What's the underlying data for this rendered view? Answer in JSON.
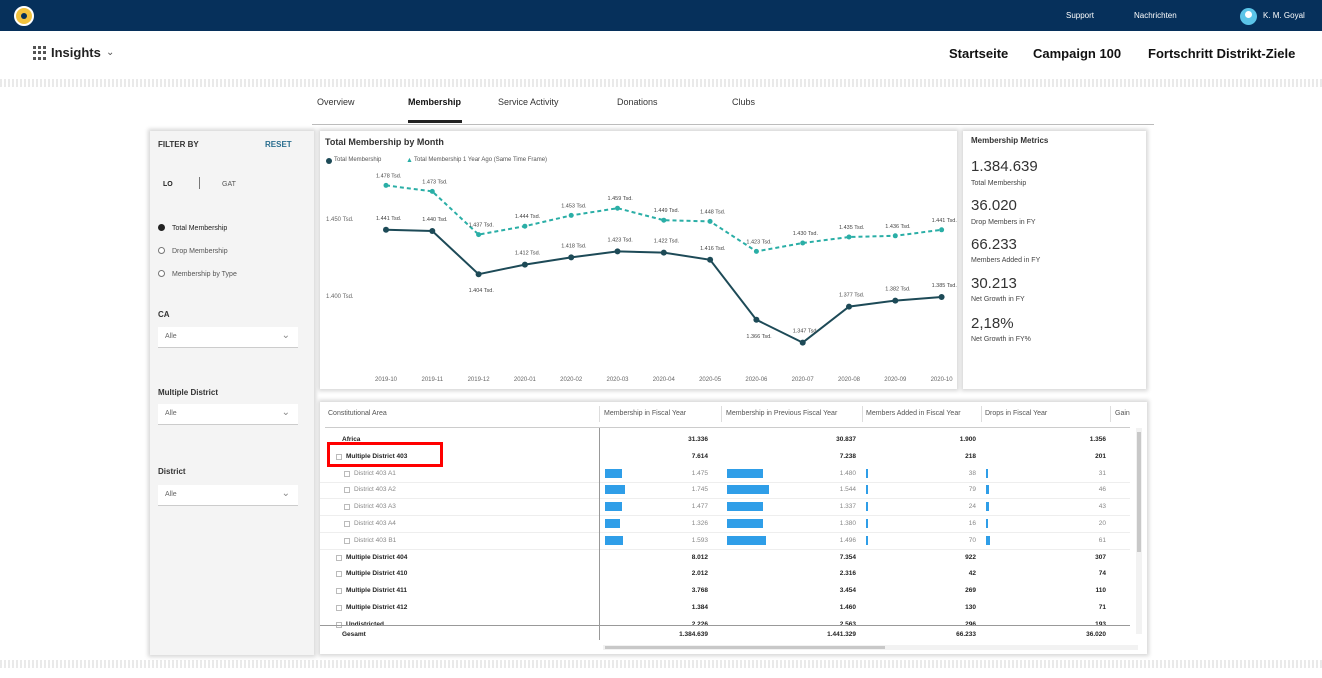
{
  "topbar": {
    "support": "Support",
    "messages": "Nachrichten",
    "user": "K. M. Goyal"
  },
  "header": {
    "app": "Insights",
    "chevron": "⌄",
    "nav": [
      "Startseite",
      "Campaign 100",
      "Fortschritt Distrikt-Ziele"
    ]
  },
  "tabs": [
    "Overview",
    "Membership",
    "Service Activity",
    "Donations",
    "Clubs"
  ],
  "filter": {
    "title": "FILTER BY",
    "reset": "RESET",
    "toggle": [
      "LO",
      "GAT"
    ],
    "options": [
      "Total Membership",
      "Drop Membership",
      "Membership by Type"
    ],
    "ca_label": "CA",
    "ca_value": "Alle",
    "md_label": "Multiple District",
    "md_value": "Alle",
    "d_label": "District",
    "d_value": "Alle"
  },
  "chart": {
    "title": "Total Membership by Month",
    "legend": [
      "Total Membership",
      "Total Membership 1 Year Ago (Same Time Frame)"
    ]
  },
  "chart_data": {
    "type": "line",
    "title": "Total Membership by Month",
    "categories": [
      "2019-10",
      "2019-11",
      "2019-12",
      "2020-01",
      "2020-02",
      "2020-03",
      "2020-04",
      "2020-05",
      "2020-06",
      "2020-07",
      "2020-08",
      "2020-09",
      "2020-10"
    ],
    "series": [
      {
        "name": "Total Membership",
        "values": [
          1441,
          1440,
          1404,
          1412,
          1418,
          1423,
          1422,
          1416,
          1366,
          1347,
          1377,
          1382,
          1385
        ],
        "labels": [
          "1.441 Tsd.",
          "1.440 Tsd.",
          "1.404 Tsd.",
          "1.412 Tsd.",
          "1.418 Tsd.",
          "1.423 Tsd.",
          "1.422 Tsd.",
          "1.416 Tsd.",
          "1.366 Tsd.",
          "1.347 Tsd.",
          "1.377 Tsd.",
          "1.382 Tsd.",
          "1.385 Tsd."
        ],
        "color": "#1d4a57"
      },
      {
        "name": "Total Membership 1 Year Ago (Same Time Frame)",
        "values": [
          1478,
          1473,
          1437,
          1444,
          1453,
          1459,
          1449,
          1448,
          1423,
          1430,
          1435,
          1436,
          1441
        ],
        "labels": [
          "1.478 Tsd.",
          "1.473 Tsd.",
          "1.437 Tsd.",
          "1.444 Tsd.",
          "1.453 Tsd.",
          "1.459 Tsd.",
          "1.449 Tsd.",
          "1.448 Tsd.",
          "1.423 Tsd.",
          "1.430 Tsd.",
          "1.435 Tsd.",
          "1.436 Tsd.",
          "1.441 Tsd."
        ],
        "color": "#2aaea6"
      }
    ],
    "yticks": [
      "1.450 Tsd.",
      "1.400 Tsd."
    ],
    "ylim": [
      1340,
      1490
    ]
  },
  "metrics": {
    "title": "Membership Metrics",
    "items": [
      {
        "value": "1.384.639",
        "label": "Total Membership"
      },
      {
        "value": "36.020",
        "label": "Drop Members in FY"
      },
      {
        "value": "66.233",
        "label": "Members Added in FY"
      },
      {
        "value": "30.213",
        "label": "Net Growth in FY"
      },
      {
        "value": "2,18%",
        "label": "Net Growth in FY%"
      }
    ]
  },
  "table": {
    "headers": [
      "Constitutional Area",
      "Membership in Fiscal Year",
      "Membership in Previous Fiscal Year",
      "Members Added in Fiscal Year",
      "Drops in Fiscal Year",
      "Gain"
    ],
    "rows": [
      {
        "name": "Africa",
        "c1": "31.336",
        "c2": "30.837",
        "c3": "1.900",
        "c4": "1.356",
        "level": 0,
        "bold": true,
        "b1": 0,
        "b2": 0,
        "b3": 0,
        "b4": 0
      },
      {
        "name": "Multiple District 403",
        "c1": "7.614",
        "c2": "7.238",
        "c3": "218",
        "c4": "201",
        "level": 1,
        "bold": true,
        "b1": 0,
        "b2": 0,
        "b3": 0,
        "b4": 0
      },
      {
        "name": "District 403 A1",
        "c1": "1.475",
        "c2": "1.480",
        "c3": "38",
        "c4": "31",
        "level": 2,
        "bold": false,
        "b1": 0.55,
        "b2": 0.6,
        "b3": 0.25,
        "b4": 0.3
      },
      {
        "name": "District 403 A2",
        "c1": "1.745",
        "c2": "1.544",
        "c3": "79",
        "c4": "46",
        "level": 2,
        "bold": false,
        "b1": 0.65,
        "b2": 0.7,
        "b3": 0.4,
        "b4": 0.4
      },
      {
        "name": "District 403 A3",
        "c1": "1.477",
        "c2": "1.337",
        "c3": "24",
        "c4": "43",
        "level": 2,
        "bold": false,
        "b1": 0.55,
        "b2": 0.6,
        "b3": 0.2,
        "b4": 0.35
      },
      {
        "name": "District 403 A4",
        "c1": "1.326",
        "c2": "1.380",
        "c3": "16",
        "c4": "20",
        "level": 2,
        "bold": false,
        "b1": 0.5,
        "b2": 0.6,
        "b3": 0.15,
        "b4": 0.25
      },
      {
        "name": "District 403 B1",
        "c1": "1.593",
        "c2": "1.496",
        "c3": "70",
        "c4": "61",
        "level": 2,
        "bold": false,
        "b1": 0.6,
        "b2": 0.65,
        "b3": 0.35,
        "b4": 0.5
      },
      {
        "name": "Multiple District 404",
        "c1": "8.012",
        "c2": "7.354",
        "c3": "922",
        "c4": "307",
        "level": 1,
        "bold": true,
        "b1": 0,
        "b2": 0,
        "b3": 0,
        "b4": 0
      },
      {
        "name": "Multiple District 410",
        "c1": "2.012",
        "c2": "2.316",
        "c3": "42",
        "c4": "74",
        "level": 1,
        "bold": true,
        "b1": 0,
        "b2": 0,
        "b3": 0,
        "b4": 0
      },
      {
        "name": "Multiple District 411",
        "c1": "3.768",
        "c2": "3.454",
        "c3": "269",
        "c4": "110",
        "level": 1,
        "bold": true,
        "b1": 0,
        "b2": 0,
        "b3": 0,
        "b4": 0
      },
      {
        "name": "Multiple District 412",
        "c1": "1.384",
        "c2": "1.460",
        "c3": "130",
        "c4": "71",
        "level": 1,
        "bold": true,
        "b1": 0,
        "b2": 0,
        "b3": 0,
        "b4": 0
      },
      {
        "name": "Undistricted",
        "c1": "2.226",
        "c2": "2.563",
        "c3": "296",
        "c4": "193",
        "level": 1,
        "bold": true,
        "b1": 0,
        "b2": 0,
        "b3": 0,
        "b4": 0
      }
    ],
    "total": {
      "name": "Gesamt",
      "c1": "1.384.639",
      "c2": "1.441.329",
      "c3": "66.233",
      "c4": "36.020"
    }
  }
}
